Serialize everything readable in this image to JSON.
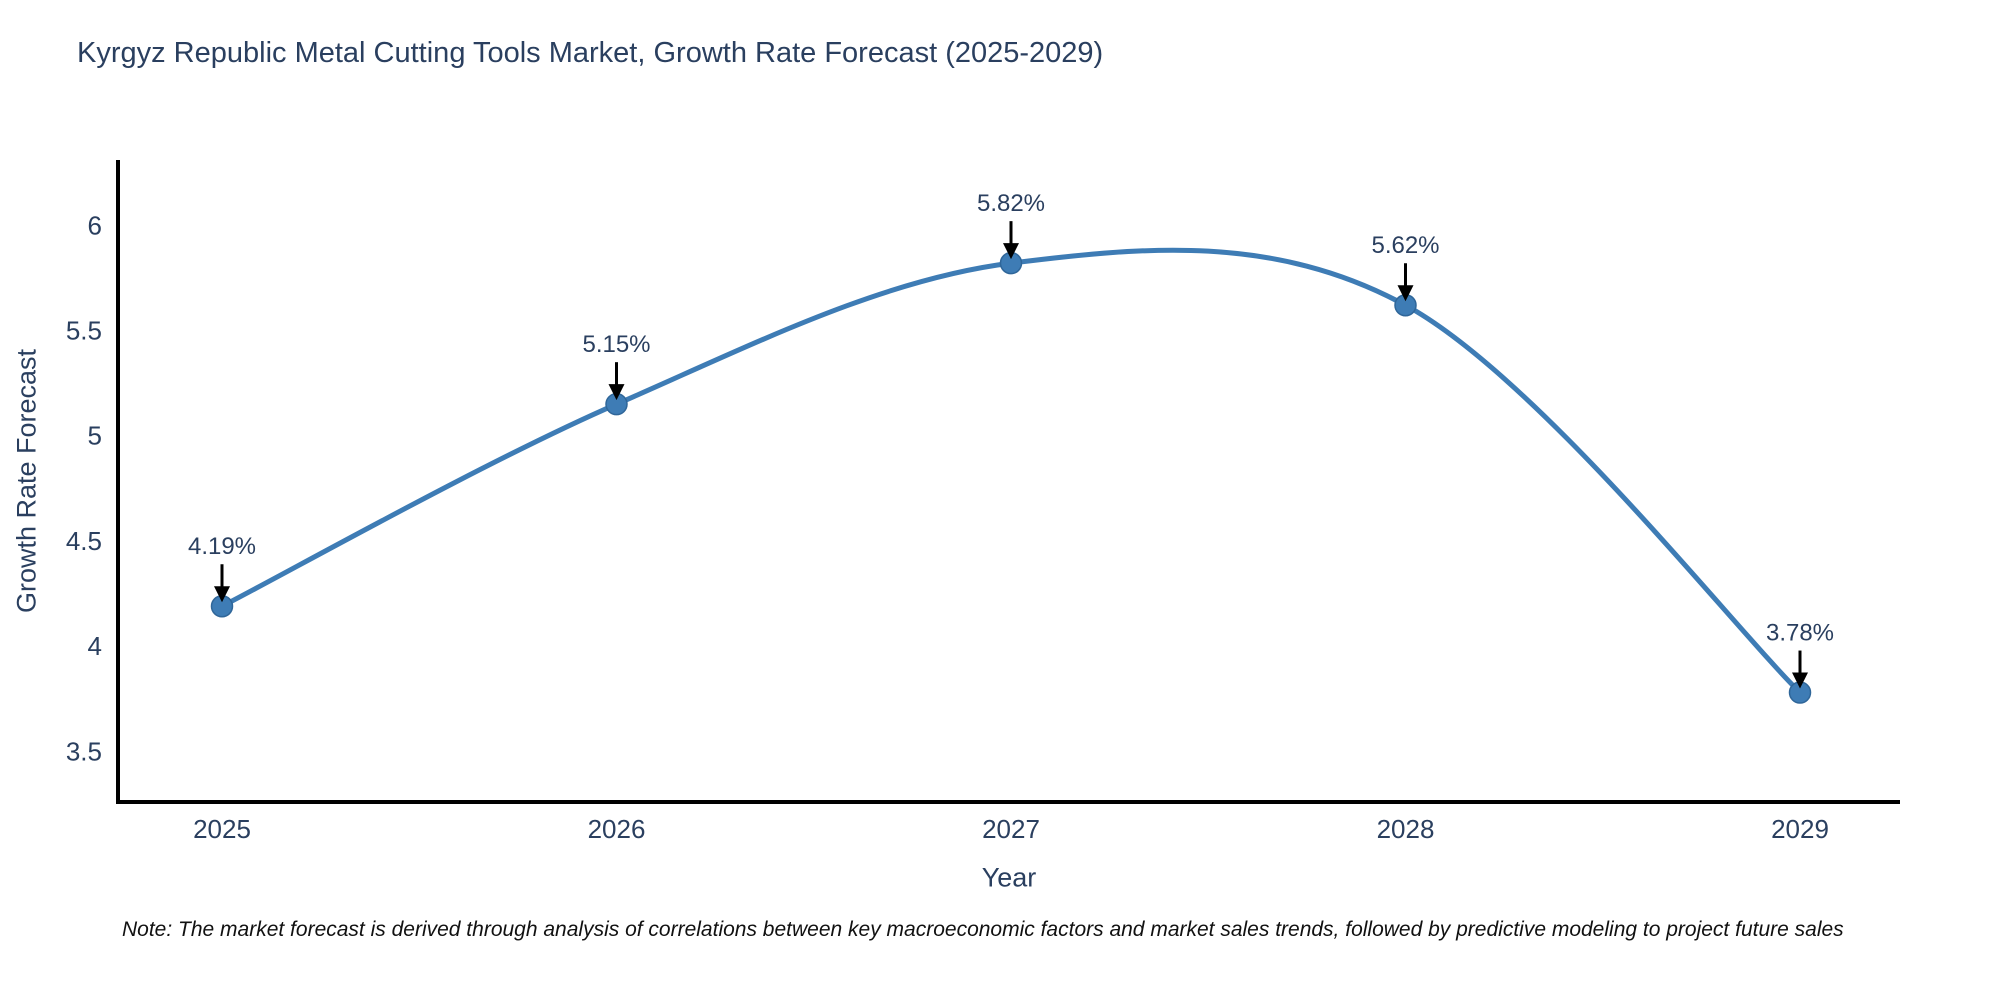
{
  "note": "Note: The market forecast is derived through analysis of correlations between key macroeconomic factors and market sales trends, followed by predictive modeling to project future sales",
  "chart_data": {
    "type": "line",
    "title": "Kyrgyz Republic Metal Cutting Tools Market, Growth Rate Forecast (2025-2029)",
    "xlabel": "Year",
    "ylabel": "Growth Rate Forecast",
    "categories": [
      "2025",
      "2026",
      "2027",
      "2028",
      "2029"
    ],
    "series": [
      {
        "name": "Growth Rate Forecast",
        "values": [
          4.19,
          5.15,
          5.82,
          5.62,
          3.78
        ],
        "point_labels": [
          "4.19%",
          "5.15%",
          "5.82%",
          "5.62%",
          "3.78%"
        ]
      }
    ],
    "yticks": [
      3.5,
      4,
      4.5,
      5,
      5.5,
      6
    ],
    "ylim": [
      3.26,
      6.31
    ],
    "line_shape": "spline",
    "grid": false,
    "legend_position": "none",
    "colors": {
      "line": "#3e7cb5",
      "marker": "#3e7cb5",
      "marker_edge": "#2f6699",
      "arrow": "#000000",
      "chart_text": "#2a3f5f",
      "axis_line": "#000000",
      "note_text": "#111111",
      "background": "#ffffff"
    }
  }
}
